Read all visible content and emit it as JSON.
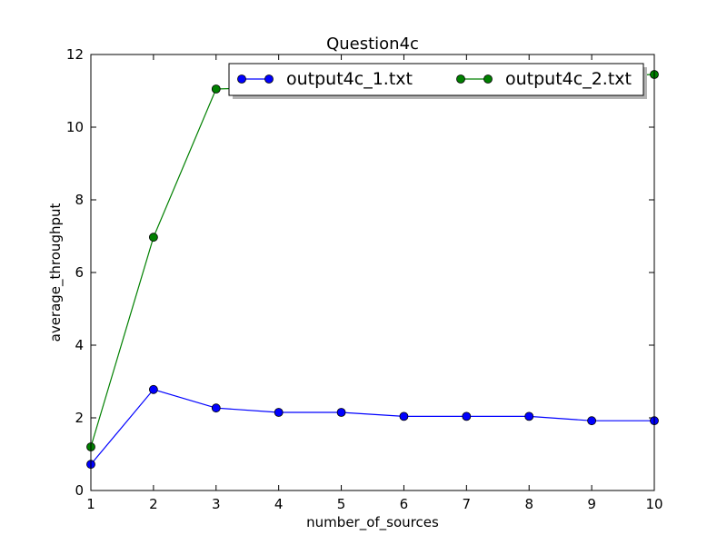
{
  "chart_data": {
    "type": "line",
    "title": "Question4c",
    "xlabel": "number_of_sources",
    "ylabel": "average_throughput",
    "xlim": [
      1,
      10
    ],
    "ylim": [
      0,
      12
    ],
    "xticks": [
      1,
      2,
      3,
      4,
      5,
      6,
      7,
      8,
      9,
      10
    ],
    "yticks": [
      0,
      2,
      4,
      6,
      8,
      10,
      12
    ],
    "grid": false,
    "legend_position": "top-right",
    "legend_columns": 2,
    "series": [
      {
        "name": "output4c_1.txt",
        "color": "#0000ff",
        "marker": "circle",
        "x": [
          1,
          2,
          3,
          4,
          5,
          6,
          7,
          8,
          9,
          10
        ],
        "y": [
          0.72,
          2.78,
          2.27,
          2.15,
          2.15,
          2.04,
          2.04,
          2.04,
          1.92,
          1.92
        ]
      },
      {
        "name": "output4c_2.txt",
        "color": "#008000",
        "marker": "circle",
        "x": [
          1,
          2,
          3,
          4,
          5,
          6,
          7,
          8,
          9,
          10
        ],
        "y": [
          1.2,
          6.97,
          11.05,
          11.1,
          11.2,
          11.25,
          11.3,
          11.35,
          11.4,
          11.45
        ]
      }
    ]
  }
}
